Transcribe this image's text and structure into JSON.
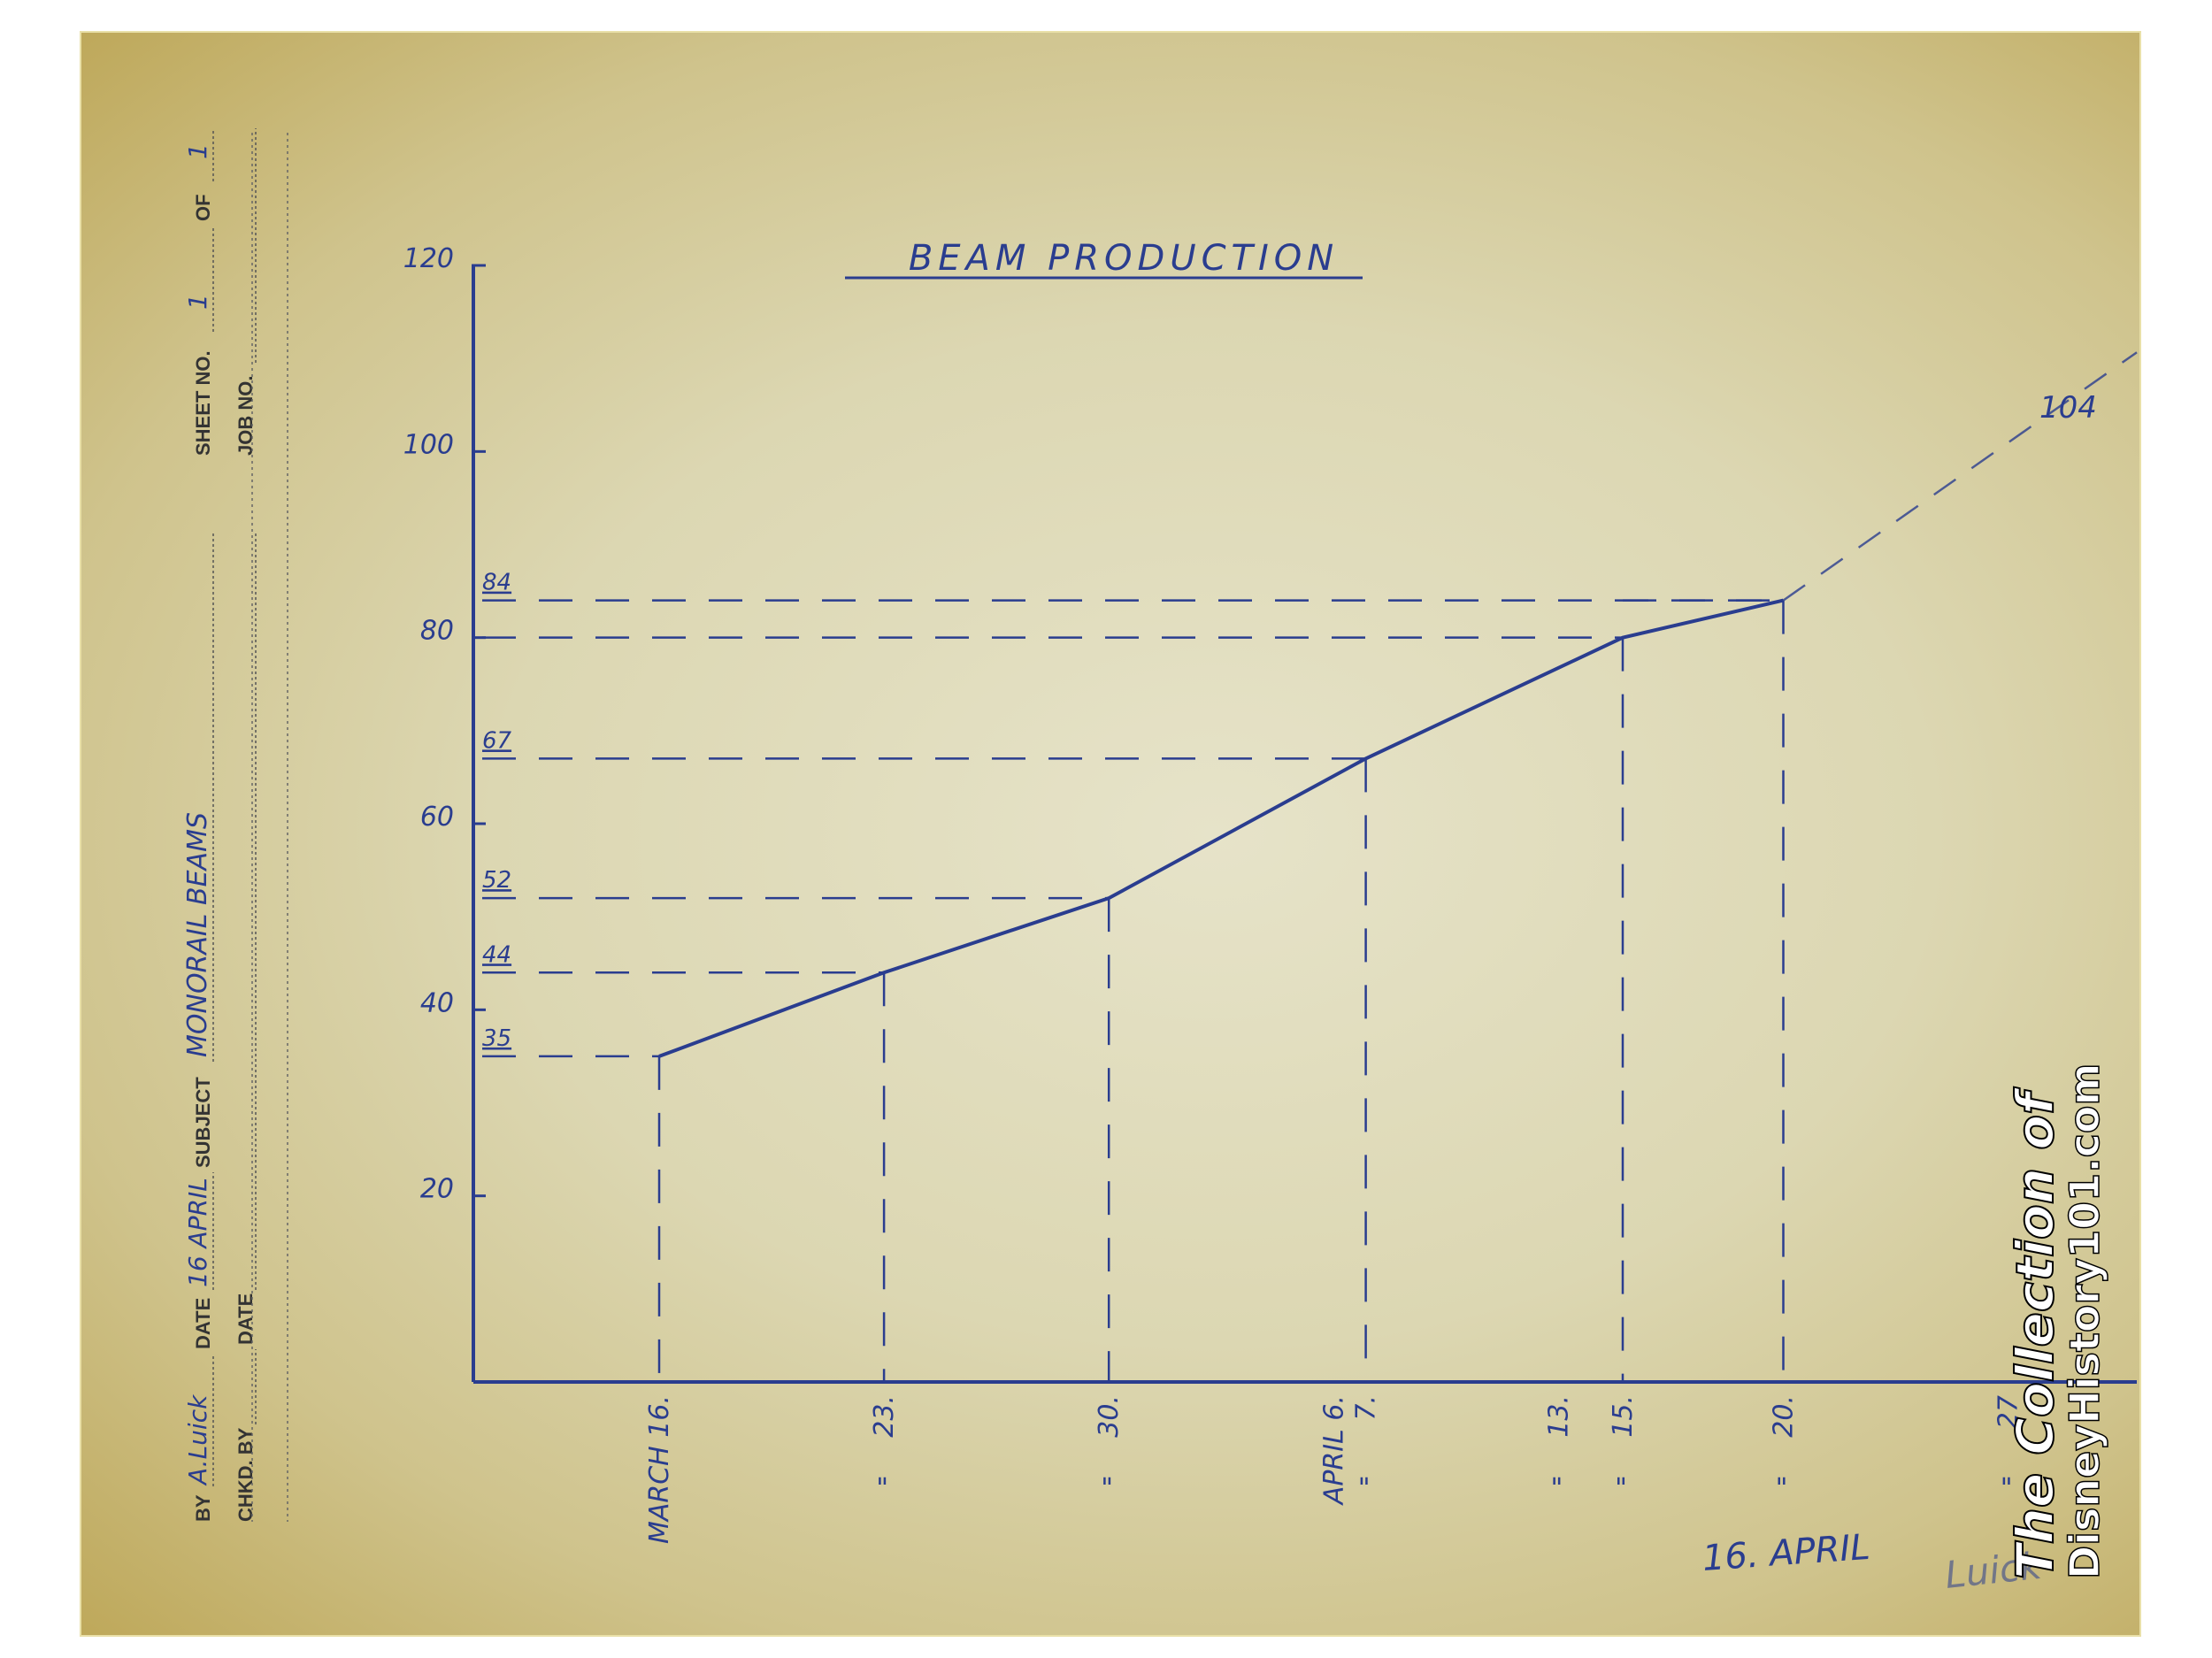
{
  "sheet": {
    "by_label": "BY",
    "by_value": "A.Luick",
    "date_label": "DATE",
    "date_value": "16 APRIL",
    "subject_label": "SUBJECT",
    "subject_value": "MONORAIL BEAMS",
    "chkd_by_label": "CHKD. BY",
    "chkd_date_label": "DATE",
    "sheet_no_label": "SHEET NO.",
    "sheet_no_value": "1",
    "of_label": "OF",
    "of_value": "1",
    "job_no_label": "JOB NO.",
    "footer_date": "16. APRIL",
    "footer_signature": "Luick",
    "watermark_line1": "The Collection of",
    "watermark_line2": "DisneyHistory101.com",
    "ink_color": "#2a3d8f"
  },
  "chart_data": {
    "type": "line",
    "title": "BEAM PRODUCTION",
    "xlabel": "",
    "ylabel": "",
    "ylim": [
      0,
      120
    ],
    "y_ticks": [
      20,
      40,
      60,
      80,
      100,
      120
    ],
    "y_tick_labels": [
      "20",
      "40",
      "60",
      "80",
      "100",
      "120"
    ],
    "x_ticks": [
      {
        "day": 16,
        "label": "MARCH 16."
      },
      {
        "day": 23,
        "label": "23."
      },
      {
        "day": 30,
        "label": "30."
      },
      {
        "day": 37,
        "label": "APRIL 6."
      },
      {
        "day": 38,
        "label": "7."
      },
      {
        "day": 44,
        "label": "13."
      },
      {
        "day": 46,
        "label": "15."
      },
      {
        "day": 51,
        "label": "20."
      },
      {
        "day": 58,
        "label": "27"
      }
    ],
    "ditto_marks": [
      "\"",
      "\"",
      "\"",
      "\"",
      "\"",
      "\"",
      "\""
    ],
    "series": [
      {
        "points": [
          {
            "day": 16,
            "value": 35
          },
          {
            "day": 23,
            "value": 44
          },
          {
            "day": 30,
            "value": 52
          },
          {
            "day": 38,
            "value": 67
          },
          {
            "day": 46,
            "value": 80
          },
          {
            "day": 51,
            "value": 84
          }
        ]
      }
    ],
    "projection": {
      "from_day": 51,
      "from_value": 84,
      "to_value": 104,
      "label": "104"
    },
    "reference_labels": [
      "84",
      "67",
      "52",
      "44",
      "35"
    ]
  }
}
